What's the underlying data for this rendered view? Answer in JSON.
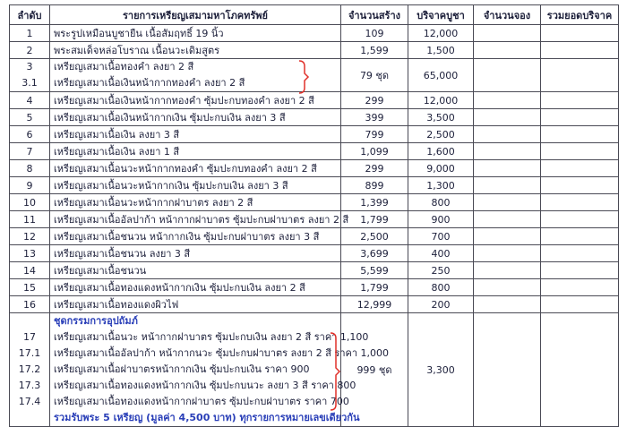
{
  "header": {
    "columns": [
      "ลำดับ",
      "รายการเหรียญเสมามหาโภคทรัพย์",
      "จำนวนสร้าง",
      "บริจาคบูชา",
      "จำนวนจอง",
      "รวมยอดบริจาค"
    ]
  },
  "rows": [
    {
      "no": "1",
      "name": "พระรูปเหมือนบูชายืน เนื้อสัมฤทธิ์ 19 นิ้ว",
      "quantity": "109",
      "price": "12,000"
    },
    {
      "no": "2",
      "name": "พระสมเด็จหล่อโบราณ เนื้อนวะเดิมสูตร",
      "quantity": "1,599",
      "price": "1,500"
    },
    {
      "items": [
        {
          "no": "3",
          "name": "เหรียญเสมาเนื้อทองคำ ลงยา 2 สี"
        },
        {
          "no": "3.1",
          "name": "เหรียญเสมาเนื้อเงินหน้ากากทองคำ ลงยา 2 สี"
        }
      ],
      "quantity": "79 ชุด",
      "price": "65,000"
    },
    {
      "no": "4",
      "name": "เหรียญเสมาเนื้อเงินหน้ากากทองคำ ซุ้มปะกบทองคำ ลงยา 2 สี",
      "quantity": "299",
      "price": "12,000"
    },
    {
      "no": "5",
      "name": "เหรียญเสมาเนื้อเงินหน้ากากเงิน ซุ้มปะกบเงิน ลงยา 3 สี",
      "quantity": "399",
      "price": "3,500"
    },
    {
      "no": "6",
      "name": "เหรียญเสมาเนื้อเงิน ลงยา 3 สี",
      "quantity": "799",
      "price": "2,500"
    },
    {
      "no": "7",
      "name": "เหรียญเสมาเนื้อเงิน ลงยา 1 สี",
      "quantity": "1,099",
      "price": "1,600"
    },
    {
      "no": "8",
      "name": "เหรียญเสมาเนื้อนวะหน้ากากทองคำ ซุ้มปะกบทองคำ ลงยา 2 สี",
      "quantity": "299",
      "price": "9,000"
    },
    {
      "no": "9",
      "name": "เหรียญเสมาเนื้อนวะหน้ากากเงิน ซุ้มปะกบเงิน ลงยา 3 สี",
      "quantity": "899",
      "price": "1,300"
    },
    {
      "no": "10",
      "name": "เหรียญเสมาเนื้อนวะหน้ากากฝาบาตร ลงยา 2 สี",
      "quantity": "1,399",
      "price": "800"
    },
    {
      "no": "11",
      "name": "เหรียญเสมาเนื้ออัลปาก้า หน้ากากฝาบาตร ซุ้มปะกบฝาบาตร ลงยา 2 สี",
      "quantity": "1,799",
      "price": "900"
    },
    {
      "no": "12",
      "name": "เหรียญเสมาเนื้อชนวน หน้ากากเงิน ซุ้มปะกบฝาบาตร ลงยา 3 สี",
      "quantity": "2,500",
      "price": "700"
    },
    {
      "no": "13",
      "name": "เหรียญเสมาเนื้อชนวน ลงยา 3 สี",
      "quantity": "3,699",
      "price": "400"
    },
    {
      "no": "14",
      "name": "เหรียญเสมาเนื้อชนวน",
      "quantity": "5,599",
      "price": "250"
    },
    {
      "no": "15",
      "name": "เหรียญเสมาเนื้อทองแดงหน้ากากเงิน ซุ้มปะกบเงิน ลงยา 2 สี",
      "quantity": "1,799",
      "price": "800"
    },
    {
      "no": "16",
      "name": "เหรียญเสมาเนื้อทองแดงผิวไฟ",
      "quantity": "12,999",
      "price": "200"
    },
    {
      "heading": "ชุดกรรมการอุปถัมภ์",
      "items": [
        {
          "no": "17",
          "name": "เหรียญเสมาเนื้อนวะ หน้ากากฝาบาตร ซุ้มปะกบเงิน ลงยา 2 สี ราคา 1,100"
        },
        {
          "no": "17.1",
          "name": "เหรียญเสมาเนื้ออัลปาก้า หน้ากากนวะ ซุ้มปะกบฝาบาตร ลงยา 2 สี ราคา 1,000"
        },
        {
          "no": "17.2",
          "name": "เหรียญเสมาเนื้อฝาบาตรหน้ากากเงิน ซุ้มปะกบเงิน ราคา 900"
        },
        {
          "no": "17.3",
          "name": "เหรียญเสมาเนื้อทองแดงหน้ากากเงิน ซุ้มปะกบนวะ ลงยา 3 สี ราคา 800"
        },
        {
          "no": "17.4",
          "name": "เหรียญเสมาเนื้อทองแดงหน้ากากฝาบาตร ซุ้มปะกบฝาบาตร ราคา 700"
        }
      ],
      "note": "รวมรับพระ 5 เหรียญ (มูลค่า 4,500 บาท) ทุกรายการหมายเลขเดียวกัน",
      "quantity": "999 ชุด",
      "price": "3,300"
    }
  ]
}
